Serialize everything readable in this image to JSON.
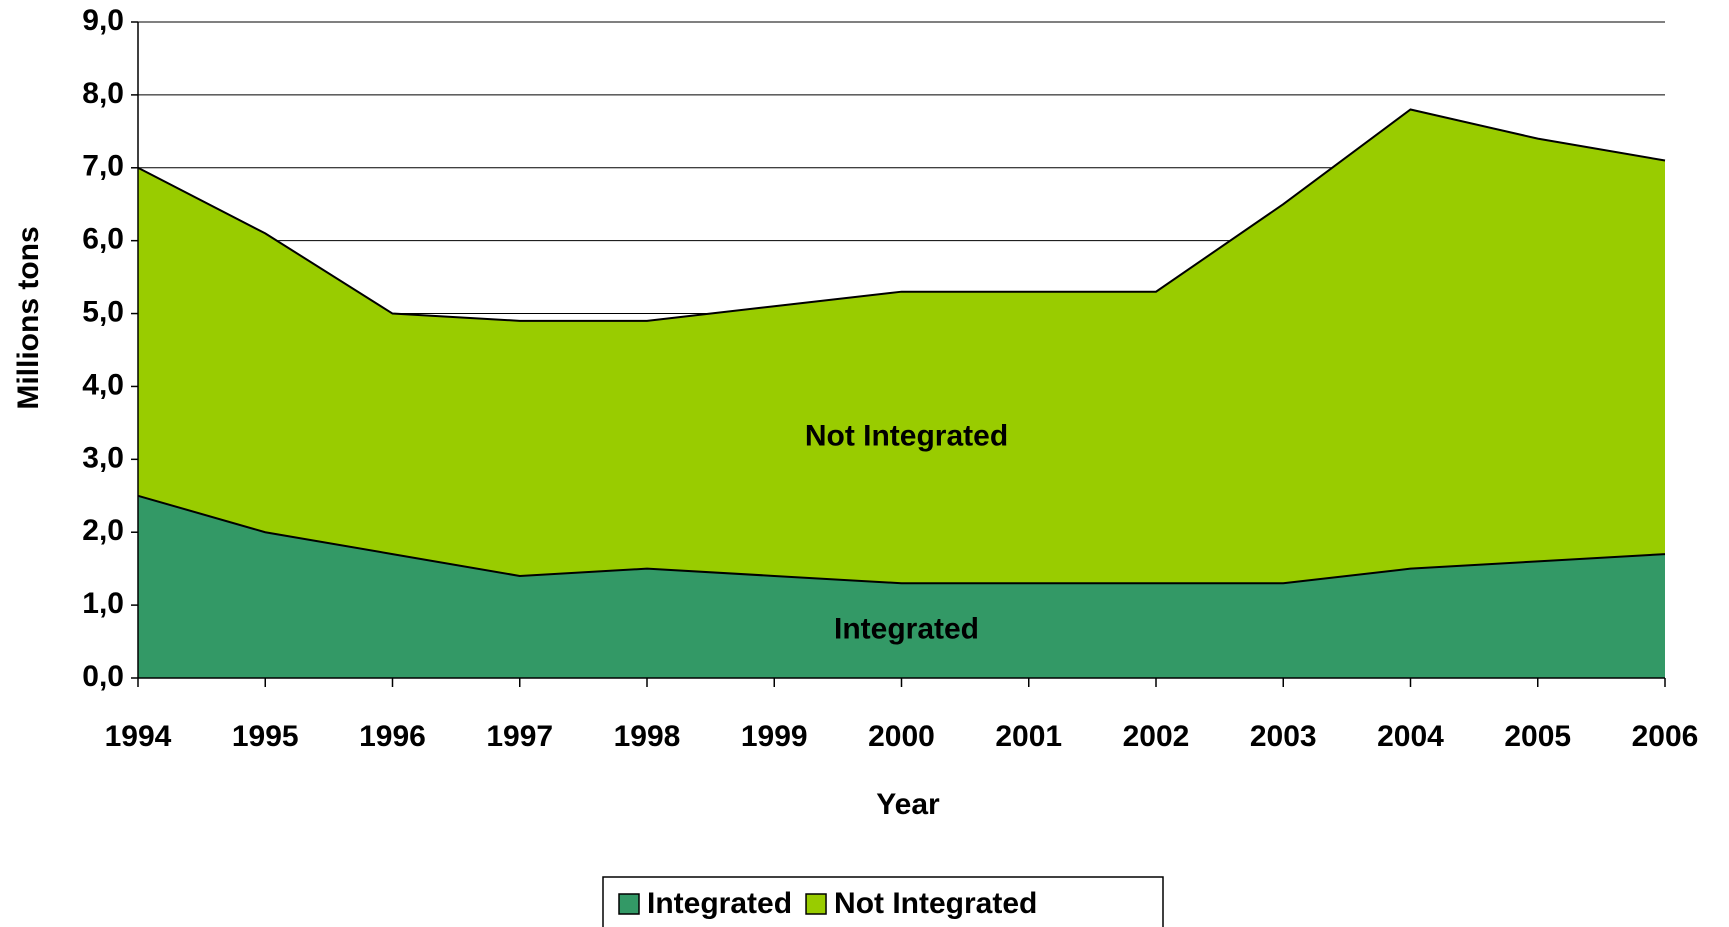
{
  "chart_data": {
    "type": "stacked_area",
    "x_label": "Year",
    "y_label": "Millions tons",
    "categories": [
      "1994",
      "1995",
      "1996",
      "1997",
      "1998",
      "1999",
      "2000",
      "2001",
      "2002",
      "2003",
      "2004",
      "2005",
      "2006"
    ],
    "series": [
      {
        "name": "Integrated",
        "color": "#339966",
        "values": [
          2.5,
          2.0,
          1.7,
          1.4,
          1.5,
          1.4,
          1.3,
          1.3,
          1.3,
          1.3,
          1.5,
          1.6,
          1.7
        ]
      },
      {
        "name": "Not Integrated",
        "color": "#99cc00",
        "values": [
          4.5,
          4.1,
          3.3,
          3.5,
          3.4,
          3.7,
          4.0,
          4.0,
          4.0,
          5.2,
          6.3,
          5.8,
          5.4
        ]
      }
    ],
    "ylim": [
      0,
      9
    ],
    "yticks": [
      {
        "value": 0,
        "label": "0,0"
      },
      {
        "value": 1,
        "label": "1,0"
      },
      {
        "value": 2,
        "label": "2,0"
      },
      {
        "value": 3,
        "label": "3,0"
      },
      {
        "value": 4,
        "label": "4,0"
      },
      {
        "value": 5,
        "label": "5,0"
      },
      {
        "value": 6,
        "label": "6,0"
      },
      {
        "value": 7,
        "label": "7,0"
      },
      {
        "value": 8,
        "label": "8,0"
      },
      {
        "value": 9,
        "label": "9,0"
      }
    ],
    "grid": true,
    "legend": "bottom"
  }
}
